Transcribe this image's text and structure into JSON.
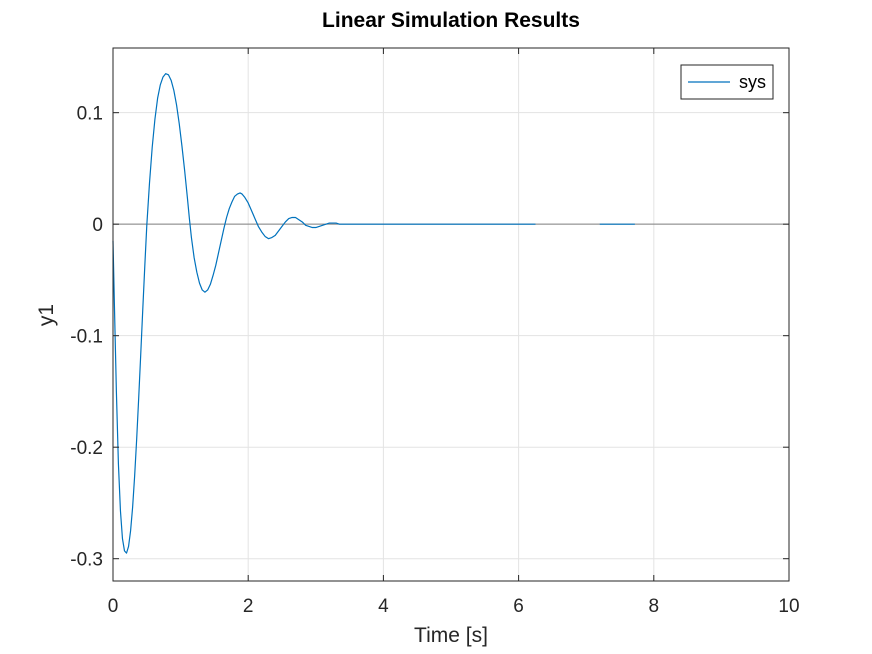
{
  "chart_data": {
    "type": "line",
    "title": "Linear Simulation Results",
    "xlabel": "Time [s]",
    "ylabel": "y1",
    "xlim": [
      0,
      10
    ],
    "ylim": [
      -0.32,
      0.158
    ],
    "xticks": [
      0,
      2,
      4,
      6,
      8,
      10
    ],
    "xtick_labels": [
      "0",
      "2",
      "4",
      "6",
      "8",
      "10"
    ],
    "yticks": [
      -0.3,
      -0.2,
      -0.1,
      0,
      0.1
    ],
    "ytick_labels": [
      "-0.3",
      "-0.2",
      "-0.1",
      "0",
      "0.1"
    ],
    "grid": true,
    "legend_position": "top-right",
    "zero_line": true,
    "series": [
      {
        "name": "sys",
        "color": "#0072bd",
        "x": [
          0.0,
          0.02,
          0.05,
          0.08,
          0.11,
          0.14,
          0.17,
          0.2,
          0.23,
          0.26,
          0.29,
          0.32,
          0.35,
          0.38,
          0.41,
          0.44,
          0.47,
          0.5,
          0.54,
          0.58,
          0.62,
          0.66,
          0.7,
          0.74,
          0.78,
          0.82,
          0.86,
          0.9,
          0.94,
          0.98,
          1.02,
          1.06,
          1.1,
          1.13,
          1.16,
          1.2,
          1.24,
          1.28,
          1.32,
          1.36,
          1.4,
          1.44,
          1.48,
          1.52,
          1.56,
          1.6,
          1.64,
          1.68,
          1.72,
          1.76,
          1.8,
          1.84,
          1.88,
          1.91,
          1.95,
          2.0,
          2.05,
          2.1,
          2.15,
          2.2,
          2.25,
          2.3,
          2.35,
          2.4,
          2.45,
          2.5,
          2.55,
          2.6,
          2.65,
          2.7,
          2.75,
          2.8,
          2.85,
          2.9,
          2.95,
          3.0,
          3.05,
          3.1,
          3.15,
          3.2,
          3.25,
          3.3,
          3.35,
          3.4,
          3.45,
          3.5,
          3.55,
          3.6,
          3.65,
          3.7,
          3.75,
          3.8,
          3.85,
          3.9,
          3.95,
          4.0,
          4.05,
          4.1,
          4.15,
          4.2,
          4.25,
          4.3,
          4.35,
          4.4,
          4.45,
          4.5,
          4.55,
          4.6,
          4.65,
          4.7,
          4.75,
          4.8,
          4.85,
          4.9,
          4.95,
          5.0,
          5.05,
          5.1,
          5.15,
          5.2,
          5.25,
          5.3,
          5.35,
          5.4,
          5.45,
          5.5,
          5.55,
          5.6,
          5.65,
          5.7,
          5.75,
          5.8,
          5.85,
          5.9,
          5.95,
          6.0,
          6.05,
          6.1,
          6.15,
          6.2,
          6.25
        ],
        "y": [
          -0.015,
          -0.07,
          -0.15,
          -0.215,
          -0.257,
          -0.282,
          -0.293,
          -0.295,
          -0.289,
          -0.275,
          -0.254,
          -0.226,
          -0.193,
          -0.156,
          -0.117,
          -0.077,
          -0.038,
          -0.001,
          0.037,
          0.069,
          0.094,
          0.113,
          0.125,
          0.132,
          0.135,
          0.134,
          0.129,
          0.12,
          0.107,
          0.09,
          0.07,
          0.048,
          0.024,
          0.005,
          -0.012,
          -0.03,
          -0.043,
          -0.053,
          -0.059,
          -0.061,
          -0.059,
          -0.054,
          -0.046,
          -0.037,
          -0.026,
          -0.015,
          -0.004,
          0.006,
          0.014,
          0.02,
          0.025,
          0.027,
          0.028,
          0.027,
          0.024,
          0.019,
          0.012,
          0.005,
          -0.002,
          -0.007,
          -0.011,
          -0.013,
          -0.012,
          -0.01,
          -0.006,
          -0.002,
          0.002,
          0.005,
          0.006,
          0.006,
          0.004,
          0.002,
          -0.001,
          -0.002,
          -0.003,
          -0.003,
          -0.002,
          -0.001,
          0.0,
          0.001,
          0.001,
          0.001,
          0.0,
          0.0,
          0.0,
          0.0,
          0.0,
          0.0,
          0.0,
          0.0,
          0.0,
          0.0,
          0.0,
          0.0,
          0.0,
          0.0,
          0.0,
          0.0,
          0.0,
          0.0,
          0.0,
          0.0,
          0.0,
          0.0,
          0.0,
          0.0,
          0.0,
          0.0,
          0.0,
          0.0,
          0.0,
          0.0,
          0.0,
          0.0,
          0.0,
          0.0,
          0.0,
          0.0,
          0.0,
          0.0,
          0.0,
          0.0,
          0.0,
          0.0,
          0.0,
          0.0,
          0.0,
          0.0,
          0.0,
          0.0,
          0.0,
          0.0,
          0.0,
          0.0,
          0.0,
          0.0,
          0.0,
          0.0,
          0.0,
          0.0,
          0.0
        ]
      },
      {
        "name": "",
        "color": "#0072bd",
        "x": [
          7.2,
          7.72
        ],
        "y": [
          0.0,
          0.0
        ]
      }
    ]
  }
}
